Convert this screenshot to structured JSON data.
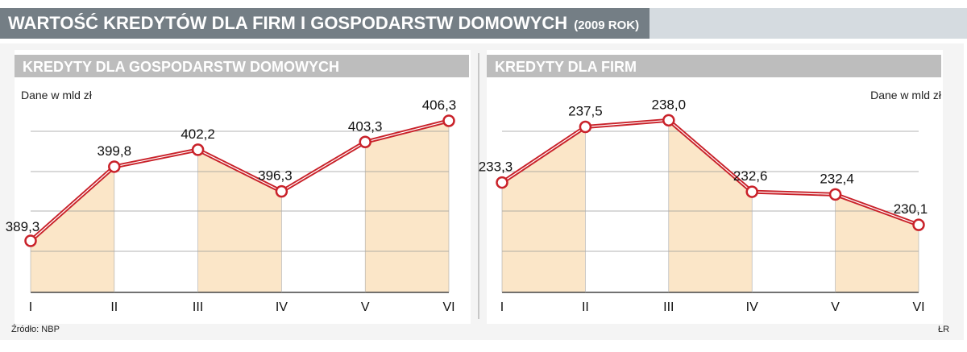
{
  "title": "WARTOŚĆ KREDYTÓW DLA FIRM I GOSPODARSTW DOMOWYCH",
  "subtitle": "(2009 ROK)",
  "source": "Źródło: NBP",
  "credit": "ŁR",
  "colors": {
    "header_dark": "#747e85",
    "panel_header": "#bdbdbd",
    "line": "#c9222a",
    "fill_shaded": "#fbe6c8",
    "fill_white": "#ffffff"
  },
  "chart_data": [
    {
      "type": "line",
      "title": "KREDYTY DLA GOSPODARSTW DOMOWYCH",
      "unit_label": "Dane w mld zł",
      "categories": [
        "I",
        "II",
        "III",
        "IV",
        "V",
        "VI"
      ],
      "values": [
        389.3,
        399.8,
        402.2,
        396.3,
        403.3,
        406.3
      ],
      "value_labels": [
        "389,3",
        "399,8",
        "402,2",
        "396,3",
        "403,3",
        "406,3"
      ],
      "ylim": [
        382,
        412
      ],
      "grid": true,
      "legend": "none"
    },
    {
      "type": "line",
      "title": "KREDYTY DLA FIRM",
      "unit_label": "Dane w mld zł",
      "categories": [
        "I",
        "II",
        "III",
        "IV",
        "V",
        "VI"
      ],
      "values": [
        233.3,
        237.5,
        238.0,
        232.6,
        232.4,
        230.1
      ],
      "value_labels": [
        "233,3",
        "237,5",
        "238,0",
        "232,6",
        "232,4",
        "230,1"
      ],
      "ylim": [
        225,
        241
      ],
      "grid": true,
      "legend": "none"
    }
  ]
}
